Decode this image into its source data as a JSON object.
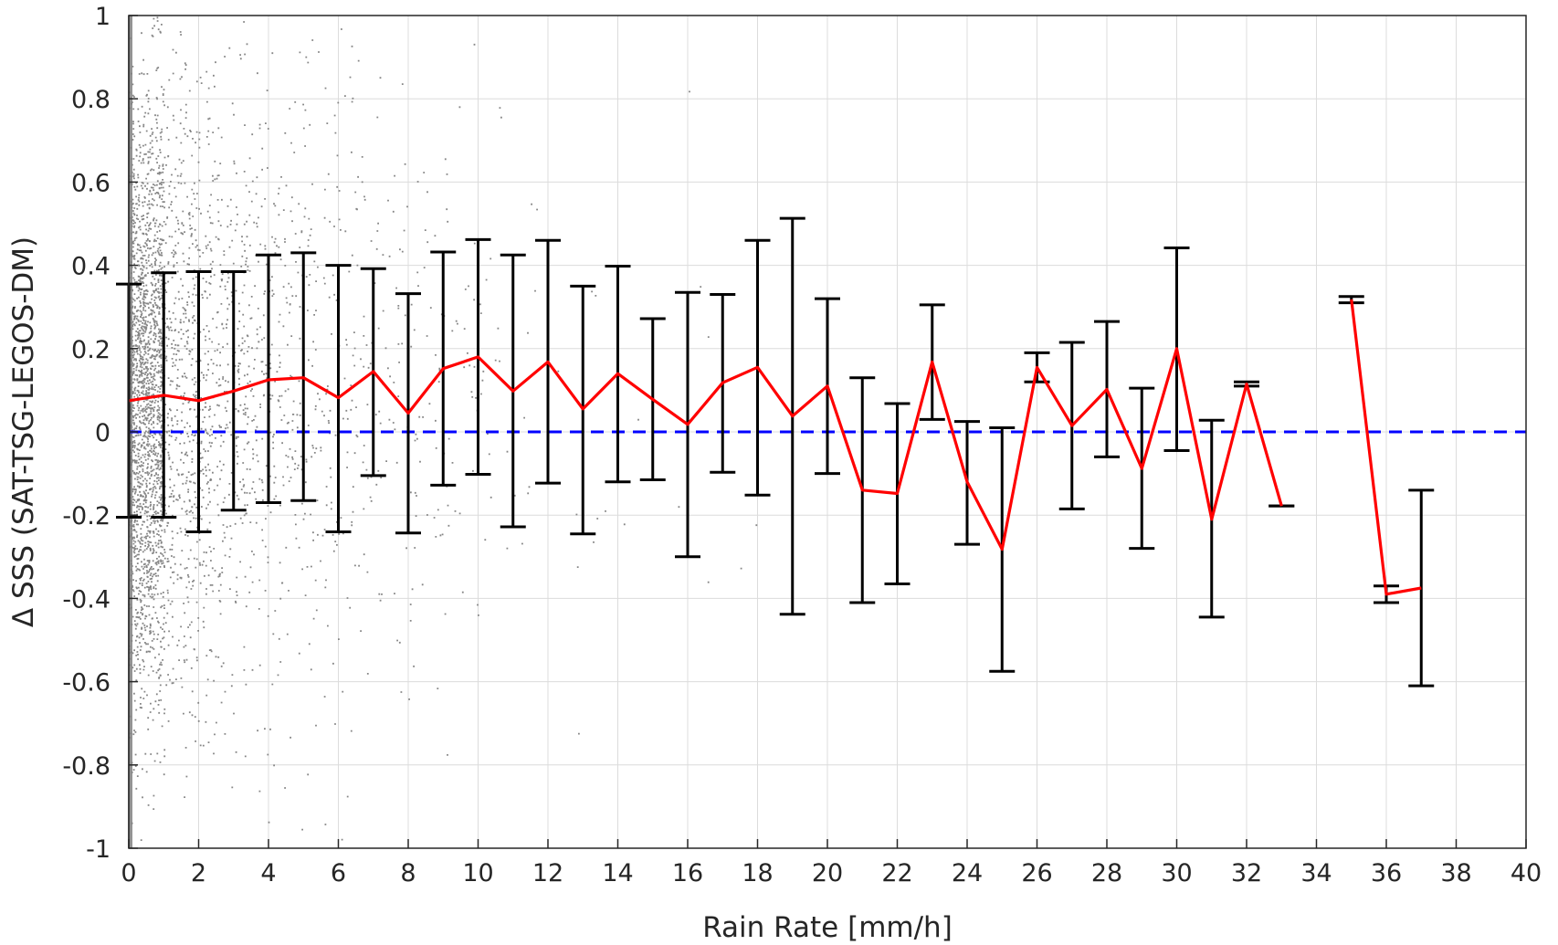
{
  "chart_data": {
    "type": "scatter",
    "xlabel": "Rain Rate [mm/h]",
    "ylabel": "Δ SSS (SAT-TSG-LEGOS-DM)",
    "xlim": [
      0,
      40
    ],
    "ylim": [
      -1,
      1
    ],
    "xticks": [
      0,
      2,
      4,
      6,
      8,
      10,
      12,
      14,
      16,
      18,
      20,
      22,
      24,
      26,
      28,
      30,
      32,
      34,
      36,
      38,
      40
    ],
    "yticks": [
      -1,
      -0.8,
      -0.6,
      -0.4,
      -0.2,
      0,
      0.2,
      0.4,
      0.6,
      0.8,
      1
    ],
    "ytick_labels": [
      "-1",
      "-0.8",
      "-0.6",
      "-0.4",
      "-0.2",
      "0",
      "0.2",
      "0.4",
      "0.6",
      "0.8",
      "1"
    ],
    "grid": true,
    "colors": {
      "scatter": "#808080",
      "mean_line": "#ff0000",
      "error_bars": "#000000",
      "zero_line": "#0000ff"
    },
    "zero_line": {
      "y": 0,
      "style": "dashed"
    },
    "scatter_points_note_free": true,
    "bins": [
      {
        "x": 0,
        "mean": 0.075,
        "upper": 0.355,
        "lower": -0.205
      },
      {
        "x": 1,
        "mean": 0.088,
        "upper": 0.382,
        "lower": -0.205
      },
      {
        "x": 2,
        "mean": 0.075,
        "upper": 0.385,
        "lower": -0.24
      },
      {
        "x": 3,
        "mean": 0.098,
        "upper": 0.385,
        "lower": -0.188
      },
      {
        "x": 4,
        "mean": 0.125,
        "upper": 0.425,
        "lower": -0.17
      },
      {
        "x": 5,
        "mean": 0.13,
        "upper": 0.43,
        "lower": -0.165
      },
      {
        "x": 6,
        "mean": 0.082,
        "upper": 0.4,
        "lower": -0.24
      },
      {
        "x": 7,
        "mean": 0.145,
        "upper": 0.392,
        "lower": -0.105
      },
      {
        "x": 8,
        "mean": 0.045,
        "upper": 0.332,
        "lower": -0.243
      },
      {
        "x": 9,
        "mean": 0.152,
        "upper": 0.432,
        "lower": -0.128
      },
      {
        "x": 10,
        "mean": 0.18,
        "upper": 0.462,
        "lower": -0.102
      },
      {
        "x": 11,
        "mean": 0.098,
        "upper": 0.425,
        "lower": -0.228
      },
      {
        "x": 12,
        "mean": 0.168,
        "upper": 0.46,
        "lower": -0.123
      },
      {
        "x": 13,
        "mean": 0.055,
        "upper": 0.35,
        "lower": -0.245
      },
      {
        "x": 14,
        "mean": 0.14,
        "upper": 0.398,
        "lower": -0.12
      },
      {
        "x": 15,
        "mean": 0.078,
        "upper": 0.272,
        "lower": -0.115
      },
      {
        "x": 16,
        "mean": 0.018,
        "upper": 0.335,
        "lower": -0.3
      },
      {
        "x": 17,
        "mean": 0.118,
        "upper": 0.33,
        "lower": -0.097
      },
      {
        "x": 18,
        "mean": 0.155,
        "upper": 0.46,
        "lower": -0.152
      },
      {
        "x": 19,
        "mean": 0.038,
        "upper": 0.513,
        "lower": -0.438
      },
      {
        "x": 20,
        "mean": 0.11,
        "upper": 0.32,
        "lower": -0.1
      },
      {
        "x": 21,
        "mean": -0.14,
        "upper": 0.13,
        "lower": -0.41
      },
      {
        "x": 22,
        "mean": -0.148,
        "upper": 0.068,
        "lower": -0.365
      },
      {
        "x": 23,
        "mean": 0.168,
        "upper": 0.305,
        "lower": 0.03
      },
      {
        "x": 24,
        "mean": -0.12,
        "upper": 0.025,
        "lower": -0.27
      },
      {
        "x": 25,
        "mean": -0.282,
        "upper": 0.01,
        "lower": -0.575
      },
      {
        "x": 26,
        "mean": 0.155,
        "upper": 0.19,
        "lower": 0.12
      },
      {
        "x": 27,
        "mean": 0.015,
        "upper": 0.215,
        "lower": -0.185
      },
      {
        "x": 28,
        "mean": 0.102,
        "upper": 0.265,
        "lower": -0.06
      },
      {
        "x": 29,
        "mean": -0.088,
        "upper": 0.105,
        "lower": -0.28
      },
      {
        "x": 30,
        "mean": 0.2,
        "upper": 0.442,
        "lower": -0.045
      },
      {
        "x": 31,
        "mean": -0.21,
        "upper": 0.028,
        "lower": -0.445
      },
      {
        "x": 32,
        "mean": 0.115,
        "upper": 0.12,
        "lower": 0.11
      },
      {
        "x": 33,
        "mean": -0.178,
        "upper": -0.178,
        "lower": -0.178
      },
      {
        "x": 35,
        "mean": 0.318,
        "upper": 0.325,
        "lower": 0.31
      },
      {
        "x": 36,
        "mean": -0.39,
        "upper": -0.37,
        "lower": -0.41
      },
      {
        "x": 37,
        "mean": -0.375,
        "upper": -0.14,
        "lower": -0.61
      }
    ]
  }
}
